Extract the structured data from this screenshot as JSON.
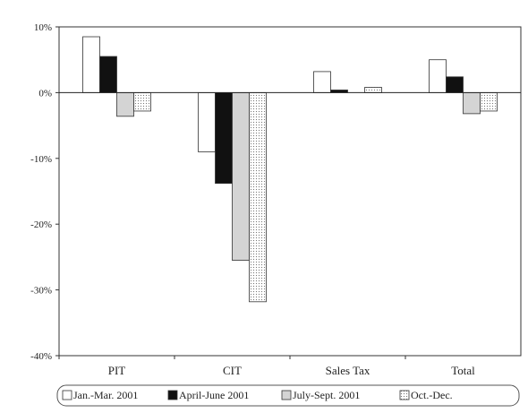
{
  "chart_data": {
    "type": "bar",
    "categories": [
      "PIT",
      "CIT",
      "Sales Tax",
      "Total"
    ],
    "series": [
      {
        "name": "Jan.-Mar. 2001",
        "values": [
          8.5,
          -9.0,
          3.2,
          5.0
        ]
      },
      {
        "name": "April-June 2001",
        "values": [
          5.5,
          -13.8,
          0.4,
          2.4
        ]
      },
      {
        "name": "July-Sept. 2001",
        "values": [
          -3.6,
          -25.5,
          null,
          -3.2
        ]
      },
      {
        "name": "Oct.-Dec.",
        "values": [
          -2.8,
          -31.8,
          0.8,
          -2.8
        ]
      }
    ],
    "ylim": [
      -40,
      10
    ],
    "yticks": [
      10,
      0,
      -10,
      -20,
      -30,
      -40
    ],
    "ytick_labels": [
      "10%",
      "0%",
      "-10%",
      "-20%",
      "-30%",
      "-40%"
    ],
    "title": "",
    "xlabel": "",
    "ylabel": "",
    "grid": false,
    "legend_position": "bottom",
    "series_styles": [
      {
        "fill": "#ffffff",
        "pattern": "none"
      },
      {
        "fill": "#111111",
        "pattern": "none"
      },
      {
        "fill": "#d4d4d4",
        "pattern": "none"
      },
      {
        "fill": "#ffffff",
        "pattern": "dots"
      }
    ]
  }
}
